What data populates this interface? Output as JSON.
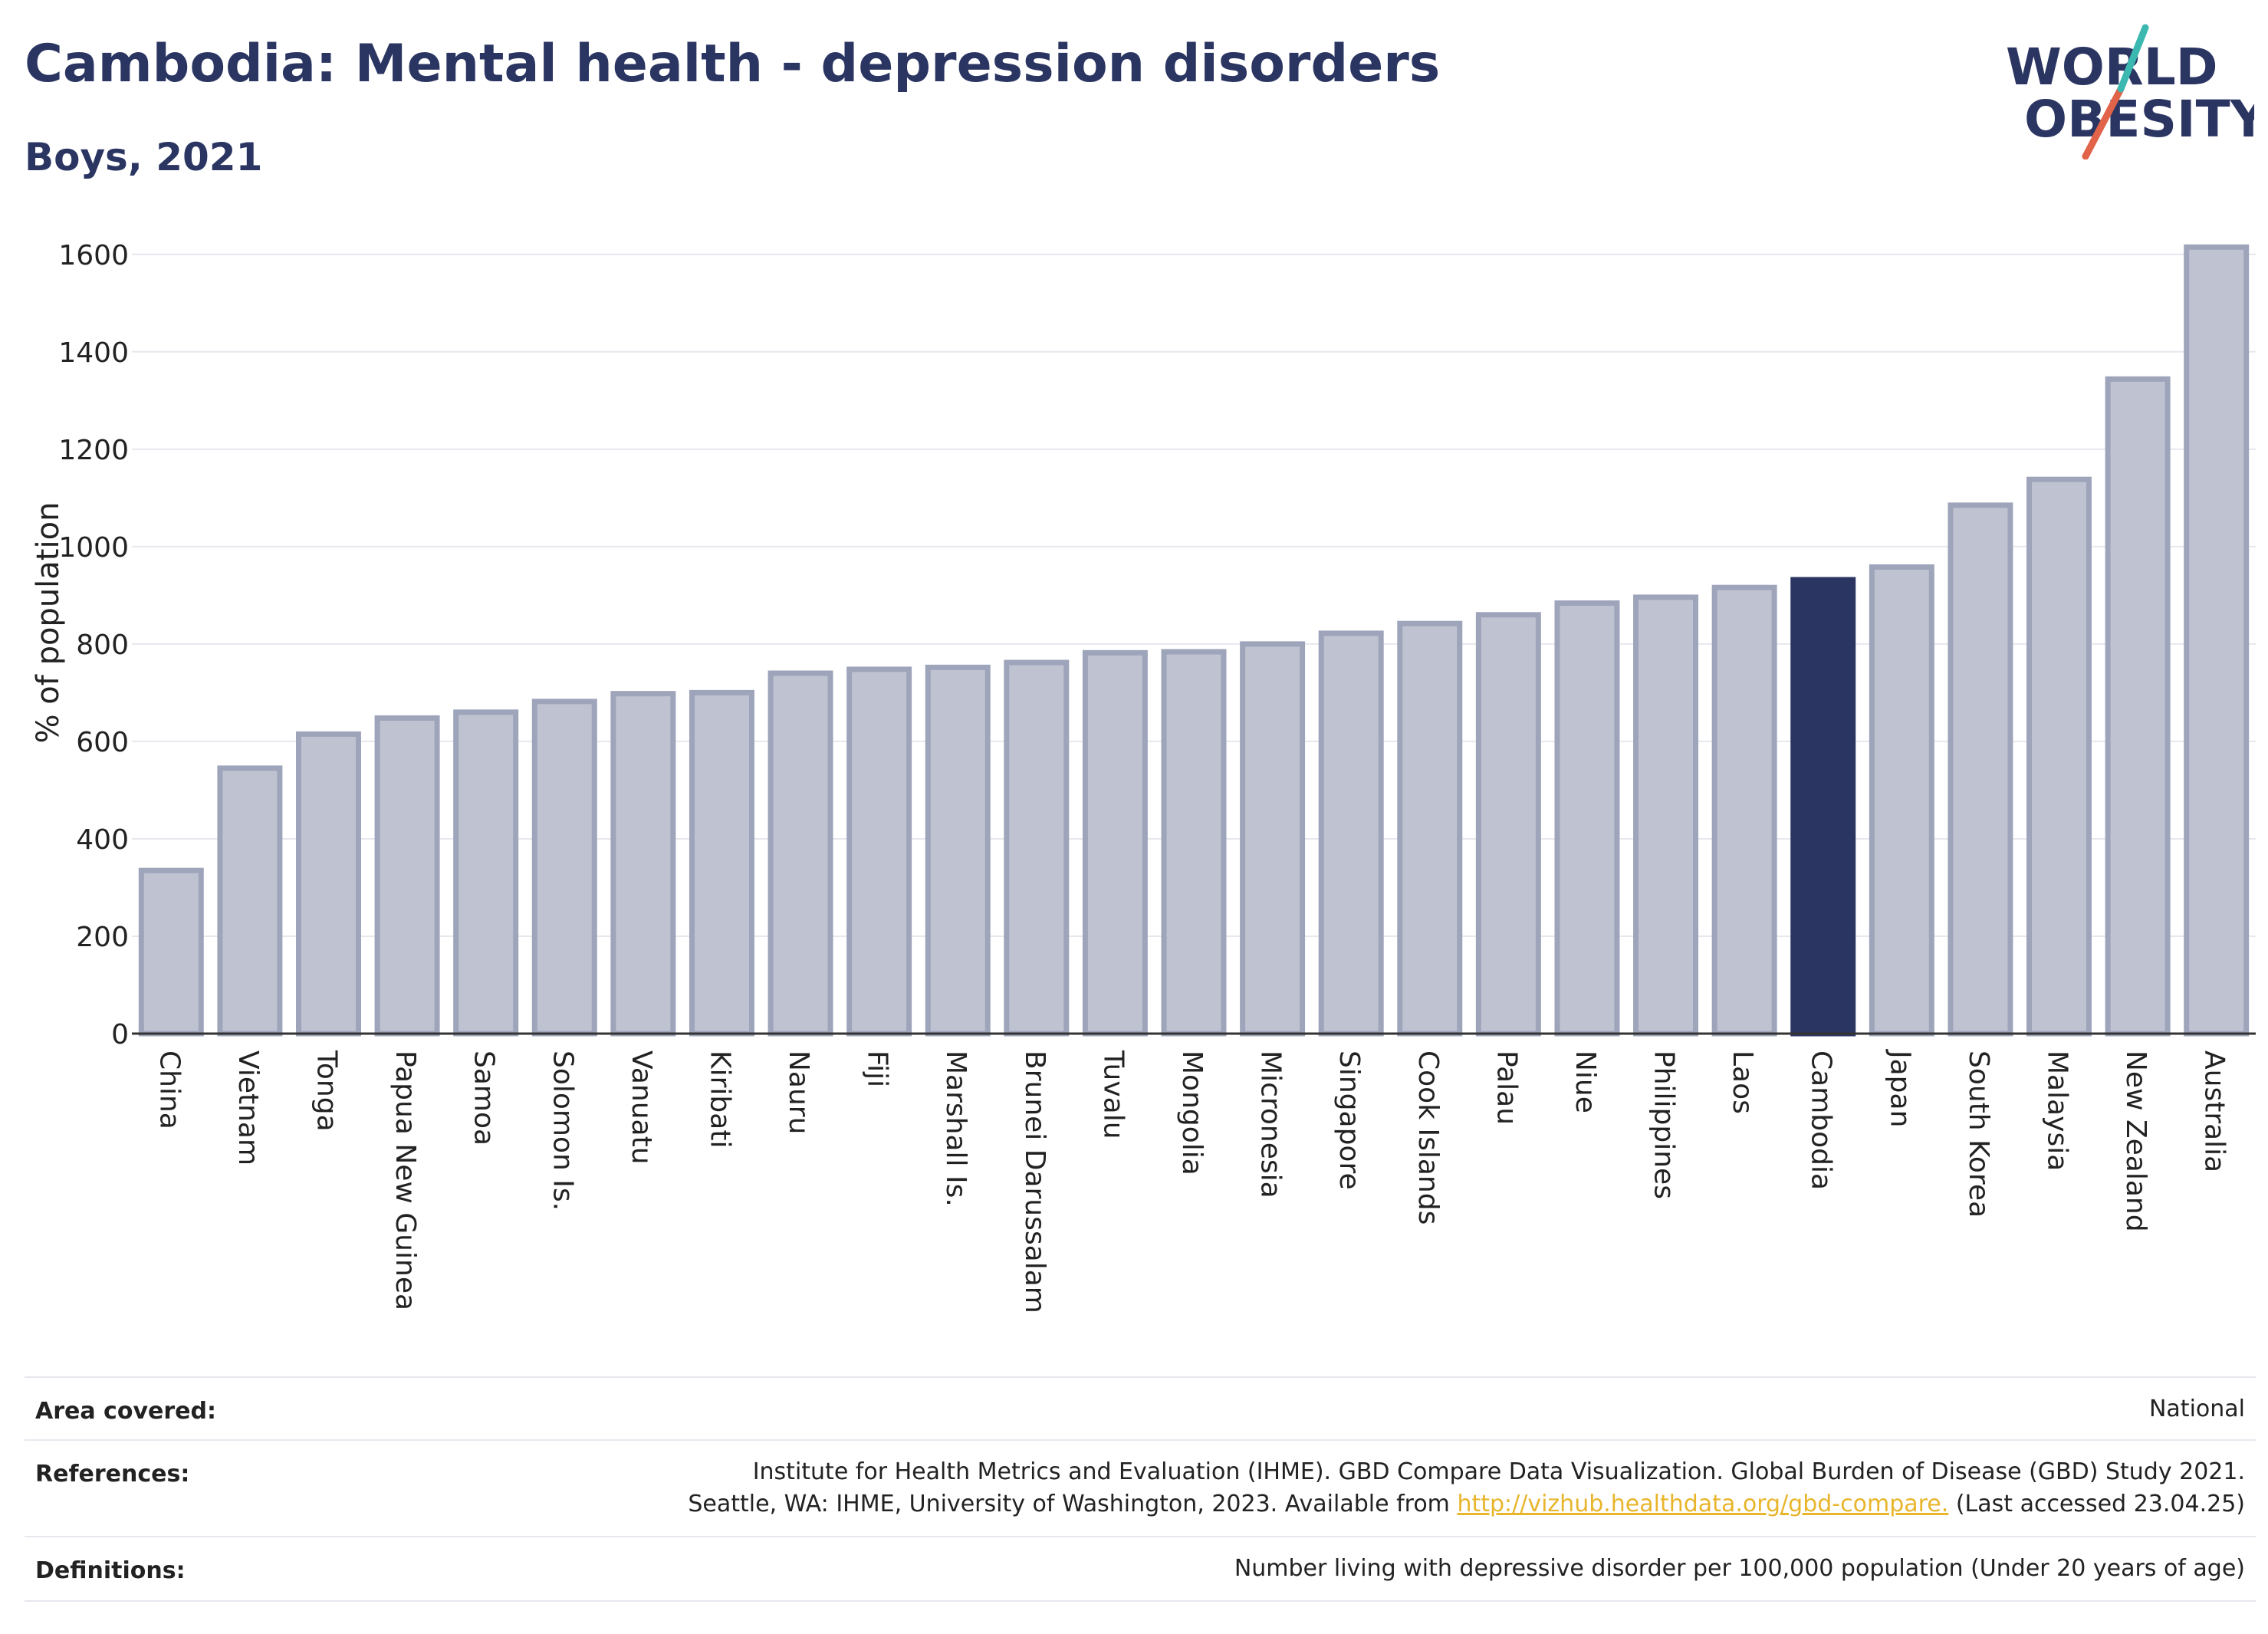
{
  "header": {
    "title": "Cambodia: Mental health - depression disorders",
    "subtitle": "Boys, 2021"
  },
  "logo": {
    "line1": "WORLD",
    "line2": "OBESITY",
    "accent_teal": "#3bb8b0",
    "accent_red": "#e0634a"
  },
  "colors": {
    "bar": "#bfc3d1",
    "bar_border": "#9ea4ba",
    "highlight": "#2b3562",
    "grid": "#e6e8ee"
  },
  "chart_data": {
    "type": "bar",
    "ylabel": "% of population",
    "ylim": [
      0,
      1650
    ],
    "yticks": [
      0,
      200,
      400,
      600,
      800,
      1000,
      1200,
      1400,
      1600
    ],
    "highlight": "Cambodia",
    "categories": [
      "China",
      "Vietnam",
      "Tonga",
      "Papua New Guinea",
      "Samoa",
      "Solomon Is.",
      "Vanuatu",
      "Kiribati",
      "Nauru",
      "Fiji",
      "Marshall Is.",
      "Brunei Darussalam",
      "Tuvalu",
      "Mongolia",
      "Micronesia",
      "Singapore",
      "Cook Islands",
      "Palau",
      "Niue",
      "Philippines",
      "Laos",
      "Cambodia",
      "Japan",
      "South Korea",
      "Malaysia",
      "New Zealand",
      "Australia"
    ],
    "values": [
      335,
      545,
      615,
      648,
      660,
      682,
      698,
      700,
      740,
      748,
      752,
      762,
      782,
      784,
      800,
      822,
      842,
      860,
      884,
      896,
      916,
      932,
      958,
      1085,
      1138,
      1344,
      1615
    ]
  },
  "info": {
    "area_label": "Area covered:",
    "area_value": "National",
    "references_label": "References:",
    "references_line1": "Institute for Health Metrics and Evaluation (IHME). GBD Compare Data Visualization. Global Burden of Disease (GBD) Study 2021.",
    "references_line2_pre": "Seattle, WA: IHME, University of Washington, 2023. Available from ",
    "references_link": "http://vizhub.healthdata.org/gbd-compare.",
    "references_line2_post": " (Last accessed 23.04.25)",
    "definitions_label": "Definitions:",
    "definitions_value": "Number living with depressive disorder per 100,000 population (Under 20 years of age)"
  }
}
